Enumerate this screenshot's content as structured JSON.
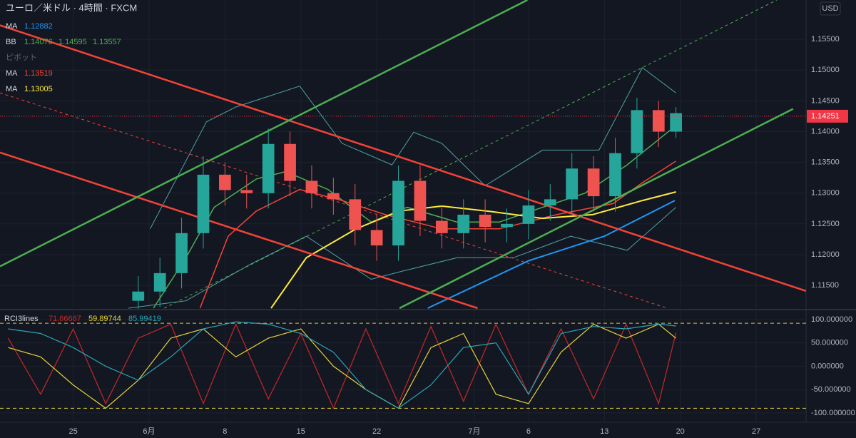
{
  "chart_data": [
    {
      "type": "candlestick",
      "title": "ユーロ／米ドル · 4時間 · FXCM",
      "currency": "USD",
      "legend": [
        {
          "label": "MA",
          "color": "#2196f3",
          "values": [
            1.12882
          ]
        },
        {
          "label": "BB",
          "color": "#4caf50",
          "values": [
            1.14076,
            1.14595,
            1.13557
          ]
        },
        {
          "label": "ピボット",
          "color": "#5d606b",
          "values": []
        },
        {
          "label": "MA",
          "color": "#f44336",
          "values": [
            1.13519
          ]
        },
        {
          "label": "MA",
          "color": "#ffeb3b",
          "values": [
            1.13005
          ]
        }
      ],
      "xlim": [
        -13.75,
        60.6
      ],
      "xticks": [
        {
          "value": -7,
          "label": "25"
        },
        {
          "value": 0,
          "label": "6月"
        },
        {
          "value": 7,
          "label": "8"
        },
        {
          "value": 14,
          "label": "15"
        },
        {
          "value": 21,
          "label": "22"
        },
        {
          "value": 30,
          "label": "7月"
        },
        {
          "value": 35,
          "label": "6"
        },
        {
          "value": 42,
          "label": "13"
        },
        {
          "value": 49,
          "label": "20"
        },
        {
          "value": 56,
          "label": "27"
        }
      ],
      "ylim": [
        1.1113,
        1.1614
      ],
      "yticks": [
        {
          "value": 1.115,
          "label": "1.11500"
        },
        {
          "value": 1.12,
          "label": "1.12000"
        },
        {
          "value": 1.125,
          "label": "1.12500"
        },
        {
          "value": 1.13,
          "label": "1.13000"
        },
        {
          "value": 1.135,
          "label": "1.13500"
        },
        {
          "value": 1.14,
          "label": "1.14000"
        },
        {
          "value": 1.145,
          "label": "1.14500"
        },
        {
          "value": 1.15,
          "label": "1.15000"
        },
        {
          "value": 1.155,
          "label": "1.15500"
        }
      ],
      "grid": true,
      "up_color": "#26a69a",
      "down_color": "#ef5350",
      "last_price": 1.14251,
      "last_price_color": "#f23645",
      "x": [
        -1,
        1,
        3,
        5,
        7,
        9,
        11,
        13,
        15,
        17,
        19,
        21,
        23,
        25,
        27,
        29,
        31,
        33,
        35,
        37,
        39,
        41,
        43,
        45,
        47,
        48.6
      ],
      "open": [
        1.1125,
        1.114,
        1.117,
        1.1235,
        1.133,
        1.1305,
        1.13,
        1.138,
        1.132,
        1.13,
        1.129,
        1.124,
        1.1215,
        1.132,
        1.1255,
        1.1235,
        1.1265,
        1.1245,
        1.125,
        1.128,
        1.129,
        1.134,
        1.1295,
        1.1365,
        1.1435,
        1.14
      ],
      "high": [
        1.1165,
        1.1195,
        1.126,
        1.136,
        1.135,
        1.133,
        1.1405,
        1.14,
        1.1345,
        1.1325,
        1.1315,
        1.1265,
        1.1345,
        1.1345,
        1.128,
        1.129,
        1.129,
        1.1275,
        1.1305,
        1.1315,
        1.1365,
        1.136,
        1.139,
        1.1455,
        1.145,
        1.144
      ],
      "low": [
        1.11,
        1.1115,
        1.1145,
        1.121,
        1.128,
        1.1275,
        1.1275,
        1.1295,
        1.1275,
        1.1265,
        1.1215,
        1.119,
        1.119,
        1.123,
        1.121,
        1.121,
        1.122,
        1.122,
        1.1225,
        1.1255,
        1.1265,
        1.127,
        1.127,
        1.134,
        1.1375,
        1.139
      ],
      "close": [
        1.114,
        1.117,
        1.1235,
        1.133,
        1.1305,
        1.13,
        1.138,
        1.132,
        1.13,
        1.129,
        1.124,
        1.1215,
        1.132,
        1.1255,
        1.1235,
        1.1265,
        1.1245,
        1.125,
        1.128,
        1.129,
        1.134,
        1.1295,
        1.1365,
        1.1435,
        1.14,
        1.143
      ],
      "lines": [
        {
          "color": "#4fa3a5",
          "width": 1,
          "x": [
            0.1,
            5.3,
            8.0,
            13.9,
            17.8,
            22.4,
            24.4,
            27.0,
            31.0,
            36.3,
            41.5,
            45.5,
            48.6
          ],
          "values": [
            1.1242,
            1.1416,
            1.144,
            1.1474,
            1.1381,
            1.1346,
            1.1399,
            1.1381,
            1.1312,
            1.137,
            1.137,
            1.1504,
            1.1463
          ]
        },
        {
          "color": "#4fa3a5",
          "width": 1,
          "x": [
            -1.9,
            3.4,
            9.3,
            14.5,
            20.5,
            23.1,
            28.4,
            33.6,
            38.9,
            44.1,
            48.6
          ],
          "values": [
            1.1113,
            1.1125,
            1.1184,
            1.123,
            1.116,
            1.1172,
            1.1195,
            1.1195,
            1.123,
            1.1207,
            1.1277
          ]
        },
        {
          "color": "#4caf50",
          "width": 1.5,
          "x": [
            0.4,
            3.4,
            6.0,
            9.9,
            12.6,
            16.5,
            20.5,
            23.8,
            28.4,
            32.3,
            36.3,
            40.2,
            44.1,
            48.6
          ],
          "values": [
            1.1113,
            1.1195,
            1.1277,
            1.1323,
            1.1335,
            1.1306,
            1.1253,
            1.1277,
            1.1253,
            1.1253,
            1.1277,
            1.13,
            1.1346,
            1.141
          ]
        },
        {
          "color": "#f44336",
          "width": 1.5,
          "x": [
            4.7,
            7.3,
            9.9,
            13.9,
            17.8,
            21.8,
            27.0,
            32.3,
            37.6,
            42.8,
            45.5,
            48.6
          ],
          "values": [
            1.1113,
            1.123,
            1.1271,
            1.1306,
            1.1288,
            1.1265,
            1.1242,
            1.1242,
            1.1265,
            1.1283,
            1.1317,
            1.1352
          ]
        },
        {
          "color": "#ffeb3b",
          "width": 2,
          "x": [
            11.25,
            14.5,
            19.1,
            23.1,
            27.0,
            31.6,
            36.3,
            40.9,
            45.5,
            48.6
          ],
          "values": [
            1.1113,
            1.1195,
            1.1242,
            1.1271,
            1.1279,
            1.127,
            1.1259,
            1.1265,
            1.1288,
            1.1302
          ]
        },
        {
          "color": "#2196f3",
          "width": 2,
          "x": [
            25.7,
            35,
            42,
            48.5
          ],
          "values": [
            1.1113,
            1.119,
            1.123,
            1.1288
          ]
        },
        {
          "color": "#f44336",
          "width": 2.5,
          "x": [
            -13.75,
            60.6
          ],
          "values": [
            1.1573,
            1.1141
          ]
        },
        {
          "color": "#f44336",
          "width": 2.5,
          "x": [
            -13.75,
            30.3
          ],
          "values": [
            1.1366,
            1.1113
          ]
        },
        {
          "color": "#4caf50",
          "width": 2.5,
          "x": [
            -13.75,
            34.9
          ],
          "values": [
            1.1181,
            1.1614
          ]
        },
        {
          "color": "#4caf50",
          "width": 2.5,
          "x": [
            23.1,
            59.4
          ],
          "values": [
            1.1113,
            1.1437
          ]
        },
        {
          "color": "#f44336",
          "width": 1,
          "dash": true,
          "x": [
            -13.75,
            47.8
          ],
          "values": [
            1.1463,
            1.1113
          ]
        },
        {
          "color": "#4caf50",
          "width": 1,
          "dash": true,
          "x": [
            1.4,
            57.9
          ],
          "values": [
            1.1113,
            1.1614
          ]
        }
      ]
    },
    {
      "type": "line",
      "title": "RCI3lines",
      "legend_values": [
        71.66667,
        59.89744,
        85.99419
      ],
      "xlim": [
        -13.75,
        60.6
      ],
      "ylim": [
        -117,
        112
      ],
      "yticks": [
        {
          "value": -100,
          "label": "-100.000000"
        },
        {
          "value": -50,
          "label": "-50.000000"
        },
        {
          "value": 0,
          "label": "0.000000"
        },
        {
          "value": 50,
          "label": "50.000000"
        },
        {
          "value": 100,
          "label": "100.000000"
        }
      ],
      "bands": [
        92,
        -90
      ],
      "band_color": "#d8c432",
      "x": [
        -13,
        -10,
        -7,
        -4,
        -1,
        2,
        5,
        8,
        11,
        14,
        17,
        20,
        23,
        26,
        29,
        32,
        35,
        38,
        41,
        44,
        47,
        48.6
      ],
      "series": [
        {
          "color": "#c62828",
          "values": [
            60,
            -60,
            80,
            -80,
            60,
            90,
            -80,
            90,
            -70,
            70,
            -90,
            80,
            -80,
            85,
            -75,
            90,
            -60,
            80,
            -70,
            90,
            -80,
            71.67
          ]
        },
        {
          "color": "#e6d23a",
          "values": [
            40,
            20,
            -40,
            -90,
            -30,
            60,
            80,
            20,
            60,
            80,
            0,
            -50,
            -90,
            40,
            70,
            -60,
            -80,
            30,
            90,
            60,
            90,
            59.9
          ]
        },
        {
          "color": "#2aa5b5",
          "values": [
            80,
            70,
            40,
            0,
            -30,
            20,
            80,
            95,
            90,
            70,
            30,
            -50,
            -90,
            -40,
            40,
            50,
            -60,
            70,
            85,
            80,
            90,
            86.0
          ]
        }
      ]
    }
  ]
}
